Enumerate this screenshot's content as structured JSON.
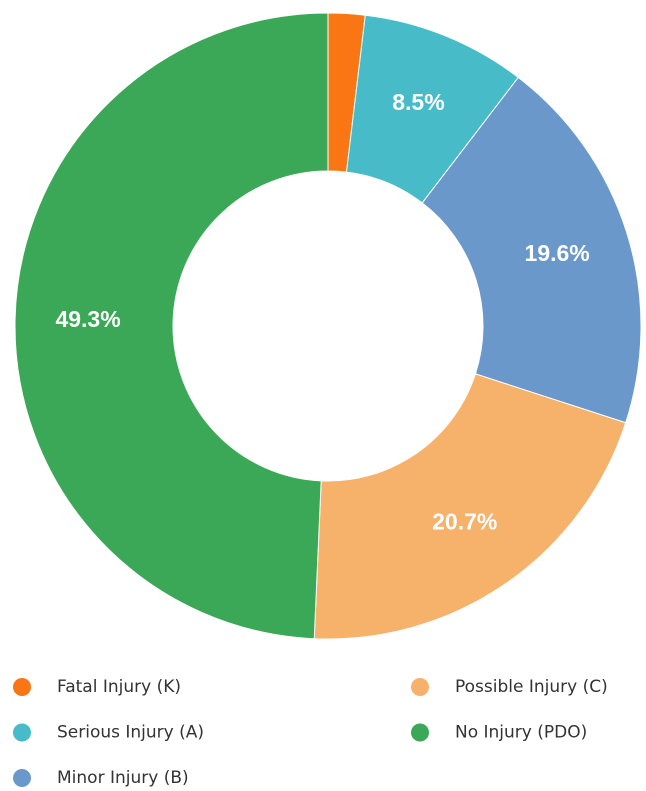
{
  "chart_data": {
    "type": "donut",
    "categories": [
      "Fatal Injury (K)",
      "Serious Injury (A)",
      "Minor Injury (B)",
      "Possible Injury (C)",
      "No Injury (PDO)"
    ],
    "values": [
      1.9,
      8.5,
      19.6,
      20.7,
      49.3
    ],
    "value_labels": [
      null,
      "8.5%",
      "19.6%",
      "20.7%",
      "49.3%"
    ],
    "colors": [
      "#fa7614",
      "#47bcc8",
      "#6a98cb",
      "#f6b26b",
      "#3aa856"
    ]
  }
}
